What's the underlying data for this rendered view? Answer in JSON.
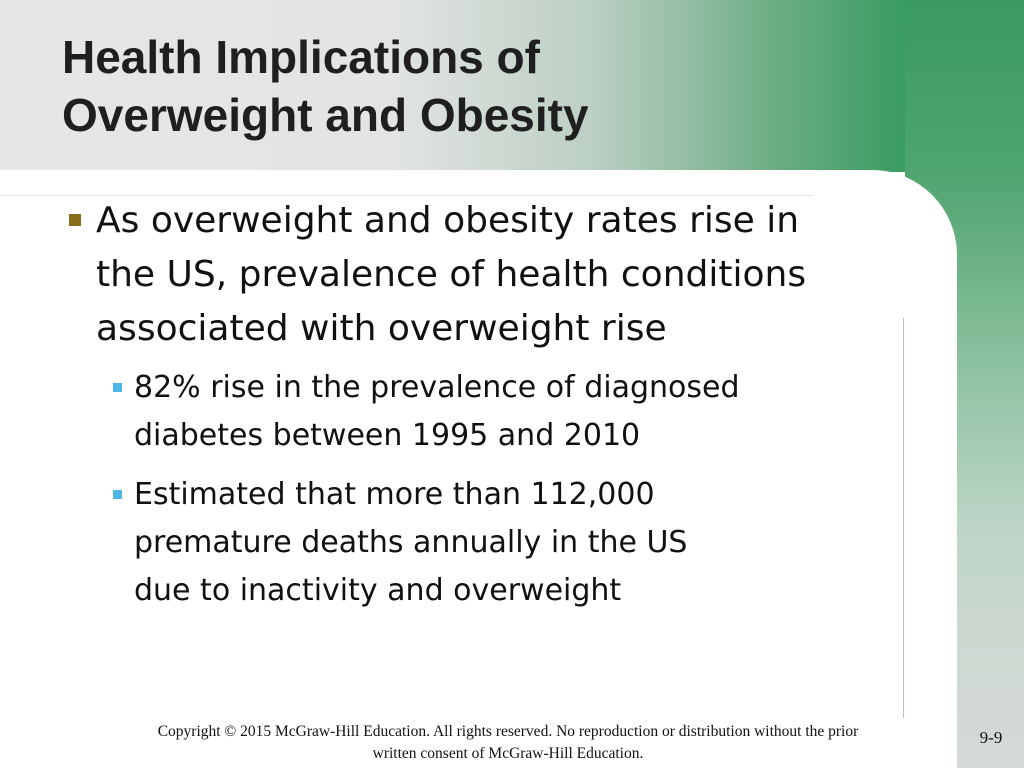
{
  "slide": {
    "title_lines": [
      "Health Implications of",
      "Overweight and Obesity"
    ],
    "bullets": [
      {
        "lines": [
          "As overweight and obesity rates rise in",
          "the US, prevalence of health conditions",
          "associated with overweight rise"
        ],
        "sub_bullets": [
          {
            "lines": [
              "82% rise in the prevalence of diagnosed",
              "diabetes between 1995 and 2010"
            ]
          },
          {
            "lines": [
              "Estimated that more than 112,000",
              "premature deaths annually in the US",
              "due to inactivity and overweight"
            ]
          }
        ]
      }
    ],
    "footer_lines": [
      "Copyright © 2015 McGraw-Hill Education. All rights reserved. No reproduction or distribution without the prior",
      "written consent of McGraw-Hill Education."
    ],
    "page_number": "9-9"
  },
  "colors": {
    "accent_green": "#3b9c61",
    "bullet_level1": "#8a6e1a",
    "bullet_level2": "#4eb6e3"
  }
}
